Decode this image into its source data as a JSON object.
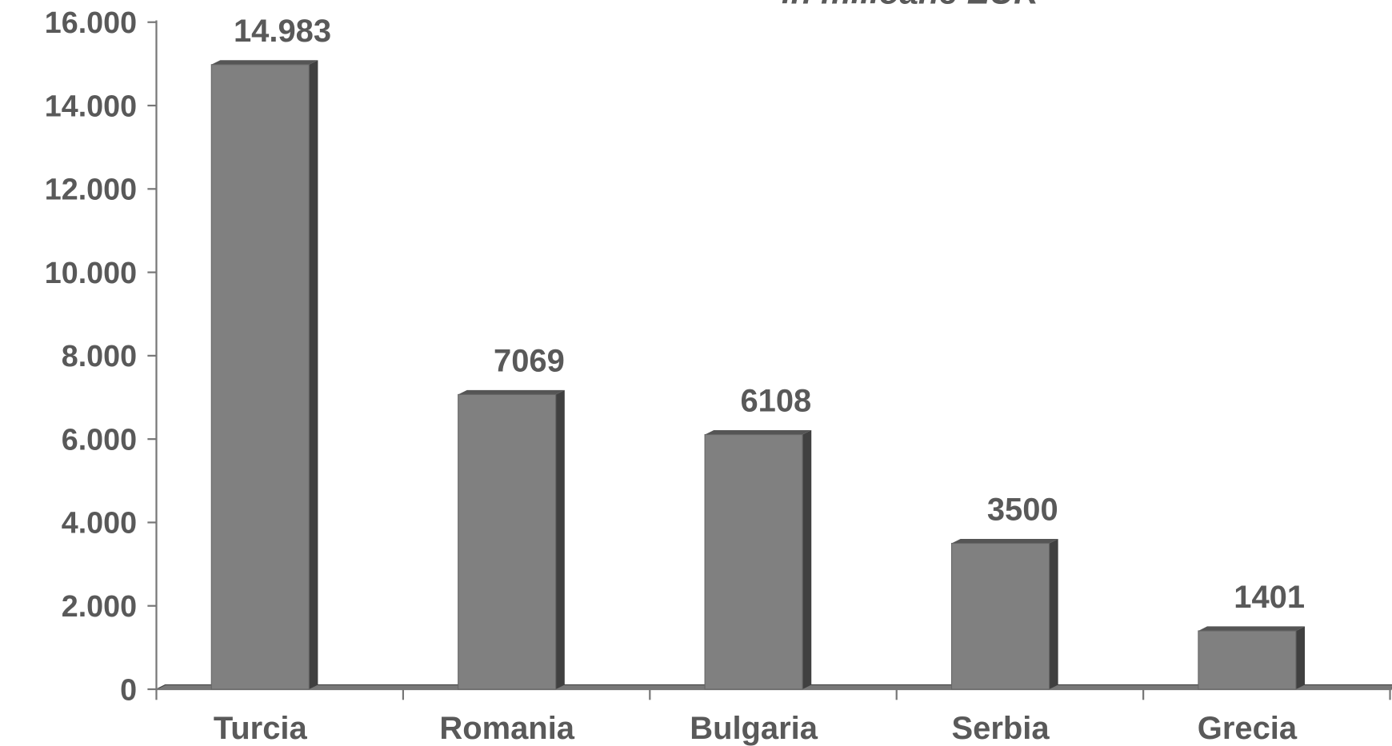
{
  "chart_data": {
    "type": "bar",
    "title": "in milioane EUR",
    "categories": [
      "Turcia",
      "Romania",
      "Bulgaria",
      "Serbia",
      "Grecia"
    ],
    "values": [
      14983,
      7069,
      6108,
      3500,
      1401
    ],
    "value_labels": [
      "14.983",
      "7069",
      "6108",
      "3500",
      "1401"
    ],
    "color": "#808080",
    "ylim": [
      0,
      16000
    ],
    "yticks": [
      0,
      {
        "value": 2000,
        "label": "2.000"
      },
      {
        "value": 4000,
        "label": "4.000"
      },
      {
        "value": 6000,
        "label": "6.000"
      },
      {
        "value": 8000,
        "label": "8.000"
      },
      {
        "value": 10000,
        "label": "10.000"
      },
      {
        "value": 12000,
        "label": "12.000"
      },
      {
        "value": 14000,
        "label": "14.000"
      },
      {
        "value": 16000,
        "label": "16.000"
      }
    ]
  }
}
